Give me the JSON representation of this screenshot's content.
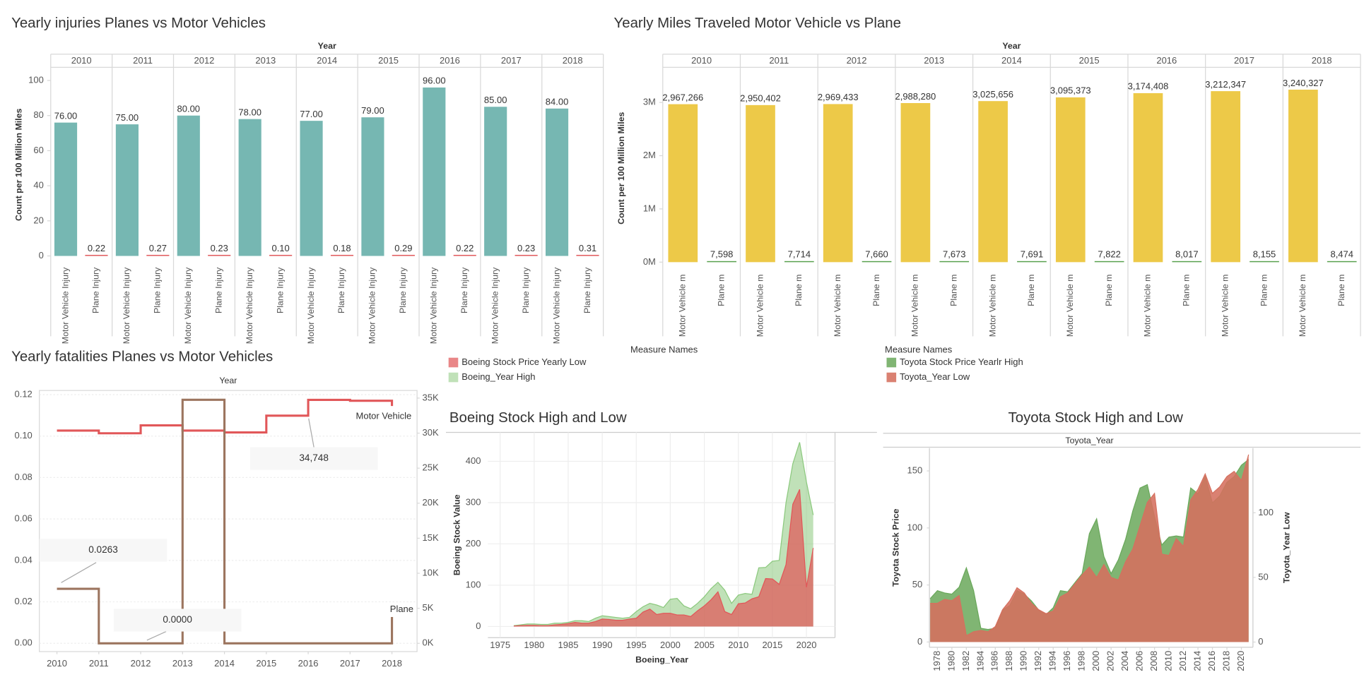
{
  "chart_data": [
    {
      "type": "bar",
      "title": "Yearly injuries  Planes vs Motor Vehicles",
      "column_title": "Year",
      "y_title": "Count per 100 Million Miles",
      "columns": [
        2010,
        2011,
        2012,
        2013,
        2014,
        2015,
        2016,
        2017,
        2018
      ],
      "series": [
        {
          "name": "Motor Vehicle Injury",
          "color": "#76b7b2",
          "values": [
            76,
            75,
            80,
            78,
            77,
            79,
            96,
            85,
            84
          ],
          "value_labels": [
            "76.00",
            "75.00",
            "80.00",
            "78.00",
            "77.00",
            "79.00",
            "96.00",
            "85.00",
            "84.00"
          ]
        },
        {
          "name": "Plane Injury",
          "color": "#e15759",
          "values": [
            0.22,
            0.27,
            0.23,
            0.1,
            0.18,
            0.29,
            0.22,
            0.23,
            0.31
          ],
          "value_labels": [
            "0.22",
            "0.27",
            "0.23",
            "0.10",
            "0.18",
            "0.29",
            "0.22",
            "0.23",
            "0.31"
          ]
        }
      ],
      "ylim": [
        -3.5,
        107.5
      ],
      "yticks": [
        0,
        20,
        40,
        60,
        80,
        100
      ]
    },
    {
      "type": "bar",
      "title": "Yearly Miles Traveled Motor Vehicle vs Plane",
      "column_title": "Year",
      "y_title": "Count per 100 Million Miles",
      "columns": [
        2010,
        2011,
        2012,
        2013,
        2014,
        2015,
        2016,
        2017,
        2018
      ],
      "series": [
        {
          "name": "Motor Vehicle m",
          "color": "#edc948",
          "values": [
            2967266,
            2950402,
            2969433,
            2988280,
            3025656,
            3095373,
            3174408,
            3212347,
            3240327
          ],
          "value_labels": [
            "2,967,266",
            "2,950,402",
            "2,969,433",
            "2,988,280",
            "3,025,656",
            "3,095,373",
            "3,174,408",
            "3,212,347",
            "3,240,327"
          ]
        },
        {
          "name": "Plane m",
          "color": "#59a14f",
          "values": [
            7598,
            7714,
            7660,
            7673,
            7691,
            7822,
            8017,
            8155,
            8474
          ],
          "value_labels": [
            "7,598",
            "7,714",
            "7,660",
            "7,673",
            "7,691",
            "7,822",
            "8,017",
            "8,155",
            "8,474"
          ]
        }
      ],
      "ylim": [
        -130000,
        3660000
      ],
      "yticks": [
        {
          "value": 0,
          "label": "0M"
        },
        {
          "value": 1000000,
          "label": "1M"
        },
        {
          "value": 2000000,
          "label": "2M"
        },
        {
          "value": 3000000,
          "label": "3M"
        }
      ]
    },
    {
      "type": "step",
      "title": "Yearly fatalities Planes vs Motor Vehicles",
      "x_title": "Year",
      "x": [
        2010,
        2011,
        2012,
        2013,
        2014,
        2015,
        2016,
        2017,
        2018
      ],
      "xlim": [
        2009.58,
        2018.6
      ],
      "xticks": [
        2010,
        2011,
        2012,
        2013,
        2014,
        2015,
        2016,
        2017,
        2018
      ],
      "ylim": [
        -0.004,
        0.122
      ],
      "yticks": [
        {
          "value": 0,
          "label": "0.00"
        },
        0.02,
        0.04,
        0.06,
        0.08,
        {
          "value": 0.1,
          "label": "0.10"
        },
        0.12
      ],
      "y2lim": [
        -1183,
        36090
      ],
      "y2ticks": [
        {
          "value": 0,
          "label": "0K"
        },
        {
          "value": 5000,
          "label": "5K"
        },
        {
          "value": 10000,
          "label": "10K"
        },
        {
          "value": 15000,
          "label": "15K"
        },
        {
          "value": 20000,
          "label": "20K"
        },
        {
          "value": 25000,
          "label": "25K"
        },
        {
          "value": 30000,
          "label": "30K"
        },
        {
          "value": 35000,
          "label": "35K"
        }
      ],
      "series": [
        {
          "name": "Motor Vehicle",
          "color": "#e15759",
          "axis": "y2",
          "values": [
            30360,
            29980,
            31110,
            30360,
            30100,
            32490,
            34748,
            34620,
            33870
          ]
        },
        {
          "name": "Plane",
          "color": "#9c755f",
          "values": [
            0.0263,
            0,
            0,
            0.1175,
            0,
            0,
            0,
            0,
            0.0127
          ]
        }
      ],
      "annotations": [
        "0.0263",
        "0.0000",
        "34,748"
      ]
    },
    {
      "type": "area",
      "title": "Boeing Stock High and Low",
      "legend_title": "Measure Names",
      "x_title": "Boeing_Year",
      "y_title": "Boeing Stock Value",
      "grid": true,
      "x": [
        1977,
        1978,
        1979,
        1980,
        1981,
        1982,
        1983,
        1984,
        1985,
        1986,
        1987,
        1988,
        1989,
        1990,
        1991,
        1992,
        1993,
        1994,
        1995,
        1996,
        1997,
        1998,
        1999,
        2000,
        2001,
        2002,
        2003,
        2004,
        2005,
        2006,
        2007,
        2008,
        2009,
        2010,
        2011,
        2012,
        2013,
        2014,
        2015,
        2016,
        2017,
        2018,
        2019,
        2020,
        2021
      ],
      "xlim": [
        1973.2,
        2024.2
      ],
      "xticks": [
        1975,
        1980,
        1985,
        1990,
        1995,
        2000,
        2005,
        2010,
        2015,
        2020
      ],
      "ylim": [
        -27,
        470
      ],
      "yticks": [
        0,
        100,
        200,
        300,
        400
      ],
      "series": [
        {
          "name": "Boeing Stock Price Yearly  Low",
          "color": "#e15759",
          "values": [
            1,
            2,
            3,
            3,
            2,
            2,
            4,
            5,
            7,
            10,
            8,
            8,
            12,
            18,
            17,
            15,
            15,
            18,
            20,
            35,
            42,
            29,
            32,
            32,
            28,
            28,
            24,
            38,
            50,
            65,
            84,
            36,
            29,
            55,
            57,
            67,
            72,
            116,
            115,
            102,
            150,
            296,
            332,
            95,
            190
          ]
        },
        {
          "name": "Boeing_Year High",
          "color": "#8cc97e",
          "values": [
            2,
            4,
            6,
            6,
            5,
            5,
            8,
            8,
            10,
            14,
            14,
            12,
            20,
            26,
            24,
            22,
            20,
            22,
            36,
            48,
            56,
            52,
            46,
            66,
            68,
            50,
            43,
            56,
            72,
            92,
            107,
            88,
            56,
            76,
            80,
            78,
            142,
            143,
            158,
            160,
            300,
            394,
            446,
            350,
            270
          ]
        }
      ]
    },
    {
      "type": "area",
      "title": "Toyota Stock High and Low",
      "legend_title": "Measure Names",
      "x_title": "Toyota_Year",
      "y_title": "Toyota Stock Price",
      "y2_title": "Toyota_Year Low",
      "grid": false,
      "x": [
        1977,
        1978,
        1979,
        1980,
        1981,
        1982,
        1983,
        1984,
        1985,
        1986,
        1987,
        1988,
        1989,
        1990,
        1991,
        1992,
        1993,
        1994,
        1995,
        1996,
        1997,
        1998,
        1999,
        2000,
        2001,
        2002,
        2003,
        2004,
        2005,
        2006,
        2007,
        2008,
        2009,
        2010,
        2011,
        2012,
        2013,
        2014,
        2015,
        2016,
        2017,
        2018,
        2019,
        2020,
        2021
      ],
      "xlim": [
        1976.9,
        2021.6
      ],
      "xticks": [
        1978,
        1980,
        1982,
        1984,
        1986,
        1988,
        1990,
        1992,
        1994,
        1996,
        1998,
        2000,
        2002,
        2004,
        2006,
        2008,
        2010,
        2012,
        2014,
        2016,
        2018,
        2020
      ],
      "ylim": [
        -4.6,
        170
      ],
      "yticks": [
        0,
        50,
        100,
        150
      ],
      "y2lim": [
        -4,
        150
      ],
      "y2ticks": [
        0,
        50,
        100
      ],
      "series": [
        {
          "name": "Toyota Stock Price Yearlr High",
          "color": "#6aa85b",
          "values": [
            38,
            45,
            43,
            42,
            48,
            65,
            45,
            12,
            11,
            12,
            28,
            32,
            45,
            42,
            36,
            28,
            24,
            30,
            45,
            44,
            52,
            60,
            95,
            108,
            75,
            60,
            72,
            90,
            115,
            135,
            138,
            110,
            85,
            92,
            93,
            92,
            135,
            130,
            145,
            122,
            128,
            140,
            145,
            155,
            160
          ]
        },
        {
          "name": "Toyota_Year Low",
          "color": "#d5705f",
          "axis": "y2",
          "values": [
            30,
            30,
            33,
            32,
            36,
            5,
            8,
            9,
            8,
            12,
            25,
            32,
            42,
            38,
            30,
            25,
            22,
            24,
            35,
            38,
            45,
            52,
            58,
            50,
            60,
            50,
            48,
            62,
            72,
            90,
            108,
            115,
            68,
            67,
            80,
            74,
            110,
            118,
            130,
            115,
            120,
            128,
            132,
            125,
            145
          ]
        }
      ]
    }
  ]
}
